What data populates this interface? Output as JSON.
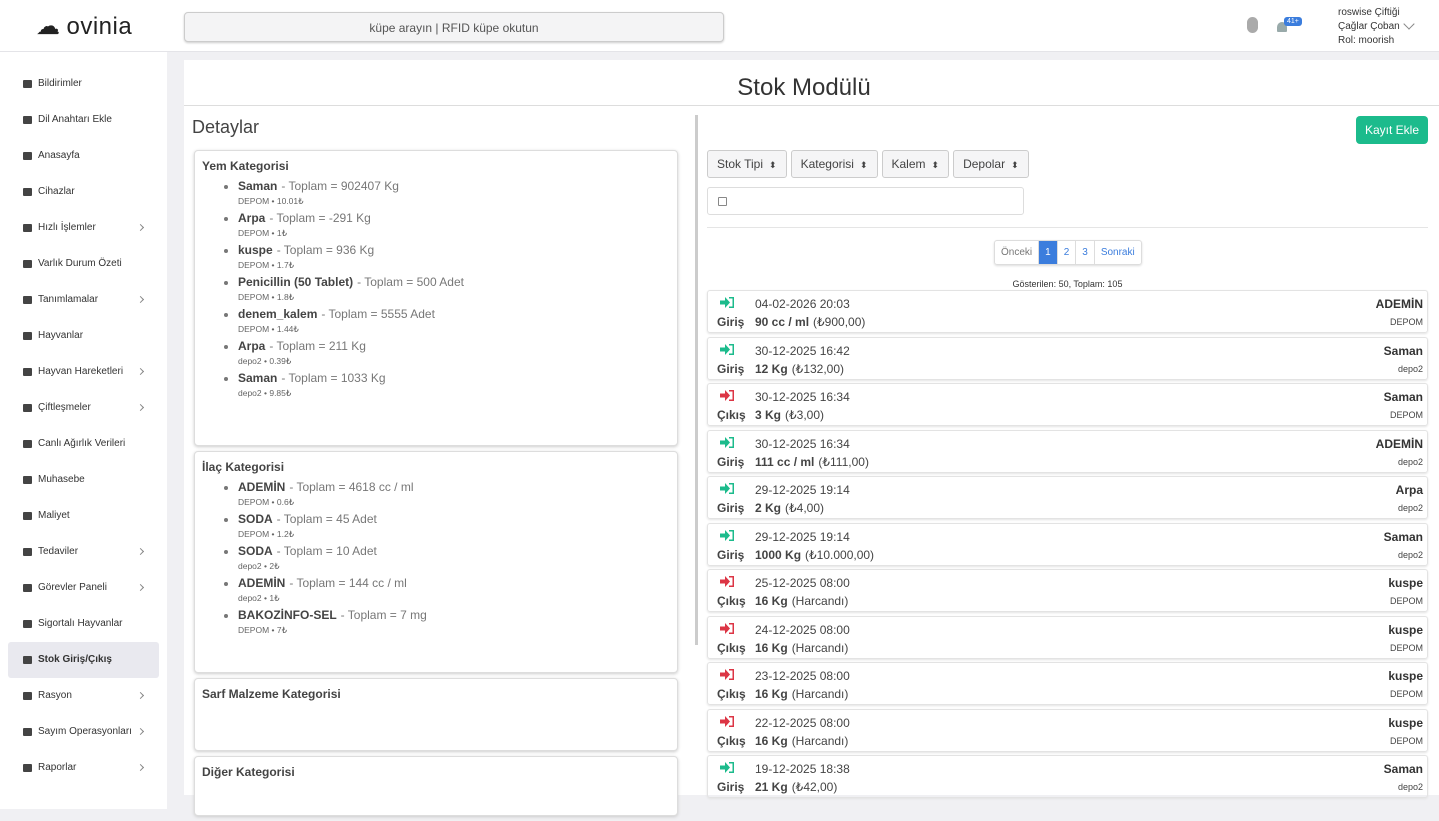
{
  "header": {
    "logo": "ovinia",
    "search_placeholder": "küpe arayın | RFID küpe okutun",
    "notification_badge": "41+",
    "farm": "roswise Çiftiği",
    "user": "Çağlar Çoban",
    "role": "Rol: moorish"
  },
  "sidebar": [
    {
      "label": "Bildirimler",
      "submenu": false
    },
    {
      "label": "Dil Anahtarı Ekle",
      "submenu": false
    },
    {
      "label": "Anasayfa",
      "submenu": false
    },
    {
      "label": "Cihazlar",
      "submenu": false
    },
    {
      "label": "Hızlı İşlemler",
      "submenu": true
    },
    {
      "label": "Varlık Durum Özeti",
      "submenu": false
    },
    {
      "label": "Tanımlamalar",
      "submenu": true
    },
    {
      "label": "Hayvanlar",
      "submenu": false
    },
    {
      "label": "Hayvan Hareketleri",
      "submenu": true
    },
    {
      "label": "Çiftleşmeler",
      "submenu": true
    },
    {
      "label": "Canlı Ağırlık Verileri",
      "submenu": false
    },
    {
      "label": "Muhasebe",
      "submenu": false
    },
    {
      "label": "Maliyet",
      "submenu": false
    },
    {
      "label": "Tedaviler",
      "submenu": true
    },
    {
      "label": "Görevler Paneli",
      "submenu": true
    },
    {
      "label": "Sigortalı Hayvanlar",
      "submenu": false
    },
    {
      "label": "Stok Giriş/Çıkış",
      "submenu": false,
      "active": true
    },
    {
      "label": "Rasyon",
      "submenu": true
    },
    {
      "label": "Sayım Operasyonları",
      "submenu": true
    },
    {
      "label": "Raporlar",
      "submenu": true
    }
  ],
  "page": {
    "title": "Stok Modülü",
    "details_title": "Detaylar",
    "add_button": "Kayıt Ekle",
    "filters": [
      "Stok Tipi",
      "Kategorisi",
      "Kalem",
      "Depolar"
    ],
    "pagination": {
      "prev": "Önceki",
      "pages": [
        "1",
        "2",
        "3"
      ],
      "next": "Sonraki",
      "summary": "Gösterilen: 50, Toplam: 105"
    }
  },
  "categories": [
    {
      "title": "Yem Kategorisi",
      "items": [
        {
          "name": "Saman",
          "detail": "- Toplam = 902407 Kg",
          "meta": "DEPOM • 10.01₺"
        },
        {
          "name": "Arpa",
          "detail": "- Toplam = -291 Kg",
          "meta": "DEPOM • 1₺"
        },
        {
          "name": "kuspe",
          "detail": "- Toplam = 936 Kg",
          "meta": "DEPOM • 1.7₺"
        },
        {
          "name": "Penicillin (50 Tablet)",
          "detail": "- Toplam = 500 Adet",
          "meta": "DEPOM • 1.8₺"
        },
        {
          "name": "denem_kalem",
          "detail": "- Toplam = 5555 Adet",
          "meta": "DEPOM • 1.44₺"
        },
        {
          "name": "Arpa",
          "detail": "- Toplam = 211 Kg",
          "meta": "depo2 • 0.39₺"
        },
        {
          "name": "Saman",
          "detail": "- Toplam = 1033 Kg",
          "meta": "depo2 • 9.85₺"
        }
      ]
    },
    {
      "title": "İlaç Kategorisi",
      "items": [
        {
          "name": "ADEMİN",
          "detail": "- Toplam = 4618 cc / ml",
          "meta": "DEPOM • 0.6₺"
        },
        {
          "name": "SODA",
          "detail": "- Toplam = 45 Adet",
          "meta": "DEPOM • 1.2₺"
        },
        {
          "name": "SODA",
          "detail": "- Toplam = 10 Adet",
          "meta": "depo2 • 2₺"
        },
        {
          "name": "ADEMİN",
          "detail": "- Toplam = 144 cc / ml",
          "meta": "depo2 • 1₺"
        },
        {
          "name": "BAKOZİNFO-SEL",
          "detail": "- Toplam = 7 mg",
          "meta": "DEPOM • 7₺"
        }
      ]
    },
    {
      "title": "Sarf Malzeme Kategorisi",
      "items": []
    },
    {
      "title": "Diğer Kategorisi",
      "items": []
    }
  ],
  "records": [
    {
      "date": "04-02-2026 20:03",
      "type": "Giriş",
      "amount": "90 cc / ml",
      "note": "(₺900,00)",
      "item": "ADEMİN",
      "depot": "DEPOM",
      "icon_color": "#1cbb8c"
    },
    {
      "date": "30-12-2025 16:42",
      "type": "Giriş",
      "amount": "12 Kg",
      "note": "(₺132,00)",
      "item": "Saman",
      "depot": "depo2",
      "icon_color": "#1cbb8c"
    },
    {
      "date": "30-12-2025 16:34",
      "type": "Çıkış",
      "amount": "3 Kg",
      "note": "(₺3,00)",
      "item": "Saman",
      "depot": "DEPOM",
      "icon_color": "#dc3545"
    },
    {
      "date": "30-12-2025 16:34",
      "type": "Giriş",
      "amount": "111 cc / ml",
      "note": "(₺111,00)",
      "item": "ADEMİN",
      "depot": "depo2",
      "icon_color": "#1cbb8c"
    },
    {
      "date": "29-12-2025 19:14",
      "type": "Giriş",
      "amount": "2 Kg",
      "note": "(₺4,00)",
      "item": "Arpa",
      "depot": "depo2",
      "icon_color": "#1cbb8c"
    },
    {
      "date": "29-12-2025 19:14",
      "type": "Giriş",
      "amount": "1000 Kg",
      "note": "(₺10.000,00)",
      "item": "Saman",
      "depot": "depo2",
      "icon_color": "#1cbb8c"
    },
    {
      "date": "25-12-2025 08:00",
      "type": "Çıkış",
      "amount": "16 Kg",
      "note": "(Harcandı)",
      "item": "kuspe",
      "depot": "DEPOM",
      "icon_color": "#dc3545"
    },
    {
      "date": "24-12-2025 08:00",
      "type": "Çıkış",
      "amount": "16 Kg",
      "note": "(Harcandı)",
      "item": "kuspe",
      "depot": "DEPOM",
      "icon_color": "#dc3545"
    },
    {
      "date": "23-12-2025 08:00",
      "type": "Çıkış",
      "amount": "16 Kg",
      "note": "(Harcandı)",
      "item": "kuspe",
      "depot": "DEPOM",
      "icon_color": "#dc3545"
    },
    {
      "date": "22-12-2025 08:00",
      "type": "Çıkış",
      "amount": "16 Kg",
      "note": "(Harcandı)",
      "item": "kuspe",
      "depot": "DEPOM",
      "icon_color": "#dc3545"
    },
    {
      "date": "19-12-2025 18:38",
      "type": "Giriş",
      "amount": "21 Kg",
      "note": "(₺42,00)",
      "item": "Saman",
      "depot": "depo2",
      "icon_color": "#1cbb8c"
    }
  ]
}
